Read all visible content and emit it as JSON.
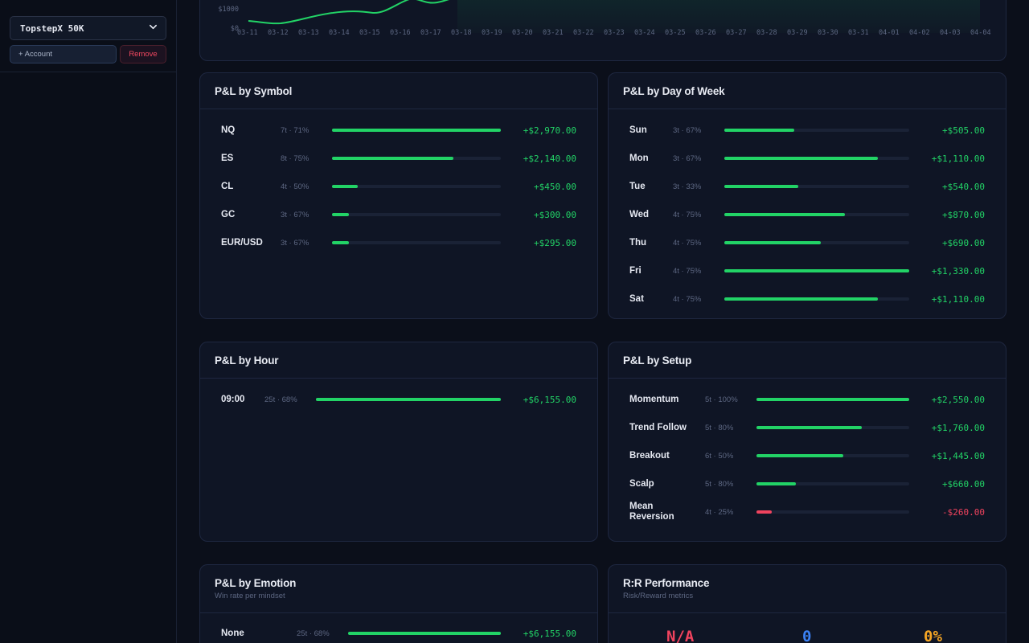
{
  "sidebar": {
    "account_select": "TopstepX 50K",
    "add_account_label": "+ Account",
    "remove_label": "Remove"
  },
  "equity_chart": {
    "y_ticks": [
      "$1000",
      "$0"
    ],
    "x_ticks": [
      "03-11",
      "03-12",
      "03-13",
      "03-14",
      "03-15",
      "03-16",
      "03-17",
      "03-18",
      "03-19",
      "03-20",
      "03-21",
      "03-22",
      "03-23",
      "03-24",
      "03-25",
      "03-26",
      "03-27",
      "03-28",
      "03-29",
      "03-30",
      "03-31",
      "04-01",
      "04-02",
      "04-03",
      "04-04"
    ]
  },
  "chart_data": {
    "type": "area",
    "x": [
      "03-11",
      "03-12",
      "03-13",
      "03-14",
      "03-15",
      "03-16",
      "03-17",
      "03-18",
      "03-19",
      "03-20",
      "03-21",
      "03-22",
      "03-23",
      "03-24",
      "03-25",
      "03-26",
      "03-27",
      "03-28",
      "03-29",
      "03-30",
      "03-31",
      "04-01",
      "04-02",
      "04-03",
      "04-04"
    ],
    "ylim": [
      0,
      1000
    ],
    "color": "#22d366"
  },
  "symbol": {
    "title": "P&L by Symbol",
    "rows": [
      {
        "label": "NQ",
        "meta": "7t · 71%",
        "pct": 1.0,
        "value": "+$2,970.00",
        "neg": false
      },
      {
        "label": "ES",
        "meta": "8t · 75%",
        "pct": 0.72,
        "value": "+$2,140.00",
        "neg": false
      },
      {
        "label": "CL",
        "meta": "4t · 50%",
        "pct": 0.15,
        "value": "+$450.00",
        "neg": false
      },
      {
        "label": "GC",
        "meta": "3t · 67%",
        "pct": 0.1,
        "value": "+$300.00",
        "neg": false
      },
      {
        "label": "EUR/USD",
        "meta": "3t · 67%",
        "pct": 0.1,
        "value": "+$295.00",
        "neg": false
      }
    ]
  },
  "dow": {
    "title": "P&L by Day of Week",
    "rows": [
      {
        "label": "Sun",
        "meta": "3t · 67%",
        "pct": 0.38,
        "value": "+$505.00",
        "neg": false
      },
      {
        "label": "Mon",
        "meta": "3t · 67%",
        "pct": 0.83,
        "value": "+$1,110.00",
        "neg": false
      },
      {
        "label": "Tue",
        "meta": "3t · 33%",
        "pct": 0.4,
        "value": "+$540.00",
        "neg": false
      },
      {
        "label": "Wed",
        "meta": "4t · 75%",
        "pct": 0.65,
        "value": "+$870.00",
        "neg": false
      },
      {
        "label": "Thu",
        "meta": "4t · 75%",
        "pct": 0.52,
        "value": "+$690.00",
        "neg": false
      },
      {
        "label": "Fri",
        "meta": "4t · 75%",
        "pct": 1.0,
        "value": "+$1,330.00",
        "neg": false
      },
      {
        "label": "Sat",
        "meta": "4t · 75%",
        "pct": 0.83,
        "value": "+$1,110.00",
        "neg": false
      }
    ]
  },
  "hour": {
    "title": "P&L by Hour",
    "rows": [
      {
        "label": "09:00",
        "meta": "25t · 68%",
        "pct": 1.0,
        "value": "+$6,155.00",
        "neg": false
      }
    ]
  },
  "setup": {
    "title": "P&L by Setup",
    "rows": [
      {
        "label": "Momentum",
        "meta": "5t · 100%",
        "pct": 1.0,
        "value": "+$2,550.00",
        "neg": false
      },
      {
        "label": "Trend Follow",
        "meta": "5t · 80%",
        "pct": 0.69,
        "value": "+$1,760.00",
        "neg": false
      },
      {
        "label": "Breakout",
        "meta": "6t · 50%",
        "pct": 0.57,
        "value": "+$1,445.00",
        "neg": false
      },
      {
        "label": "Scalp",
        "meta": "5t · 80%",
        "pct": 0.26,
        "value": "+$660.00",
        "neg": false
      },
      {
        "label": "Mean Reversion",
        "meta": "4t · 25%",
        "pct": 0.1,
        "value": "-$260.00",
        "neg": true
      }
    ]
  },
  "emotion": {
    "title": "P&L by Emotion",
    "subtitle": "Win rate per mindset",
    "rows": [
      {
        "label": "None",
        "meta": "25t · 68%",
        "pct": 1.0,
        "value": "+$6,155.00",
        "neg": false
      }
    ]
  },
  "rr": {
    "title": "R:R Performance",
    "subtitle": "Risk/Reward metrics",
    "stats": [
      {
        "value": "N/A",
        "color": "#f0435e"
      },
      {
        "value": "0",
        "color": "#3b82f6"
      },
      {
        "value": "0%",
        "color": "#f5a524"
      }
    ]
  }
}
